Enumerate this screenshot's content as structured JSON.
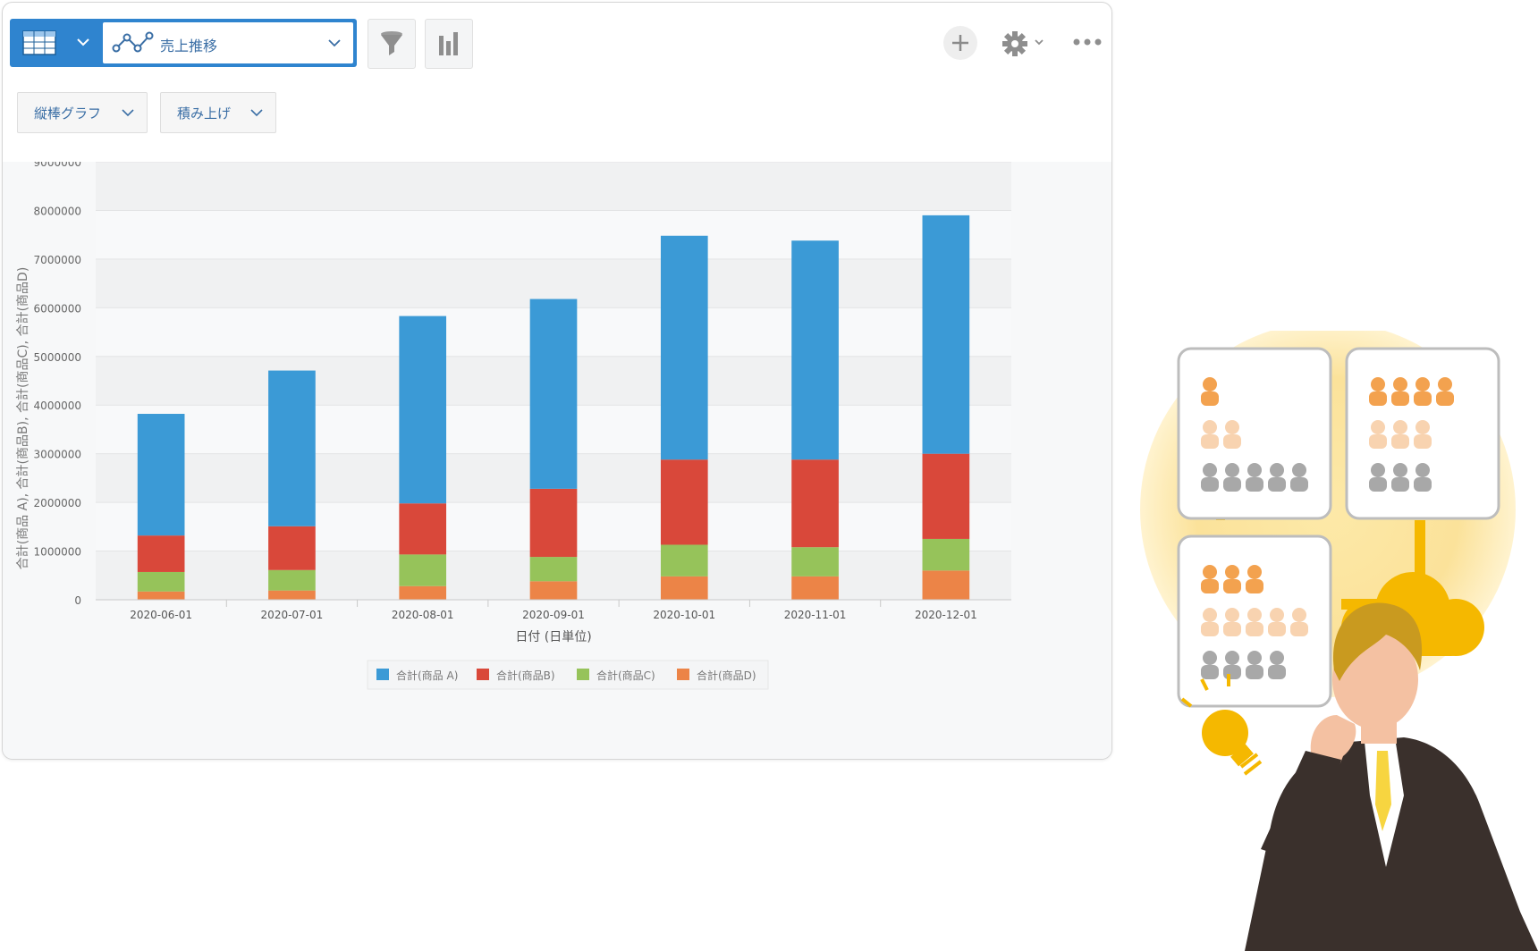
{
  "toolbar": {
    "view_name": "売上推移",
    "chart_type_label": "縦棒グラフ",
    "stack_mode_label": "積み上げ"
  },
  "icons": {
    "view": "table-icon",
    "view_select": "line-chart-icon",
    "filter": "filter-icon",
    "graph": "bar-chart-icon",
    "add": "plus-icon",
    "settings": "gear-icon",
    "more": "more-icon"
  },
  "colors": {
    "accent": "#2f84cf",
    "series": [
      "#3b9ad6",
      "#d9483a",
      "#96c35a",
      "#ec8447"
    ]
  },
  "chart_data": {
    "type": "bar",
    "stacked": true,
    "categories": [
      "2020-06-01",
      "2020-07-01",
      "2020-08-01",
      "2020-09-01",
      "2020-10-01",
      "2020-11-01",
      "2020-12-01"
    ],
    "series": [
      {
        "name": "合計(商品 A)",
        "values": [
          2500000,
          3200000,
          3850000,
          3900000,
          4600000,
          4500000,
          4900000
        ]
      },
      {
        "name": "合計(商品B)",
        "values": [
          750000,
          900000,
          1050000,
          1400000,
          1750000,
          1800000,
          1750000
        ]
      },
      {
        "name": "合計(商品C)",
        "values": [
          400000,
          420000,
          650000,
          500000,
          650000,
          600000,
          650000
        ]
      },
      {
        "name": "合計(商品D)",
        "values": [
          170000,
          190000,
          280000,
          380000,
          480000,
          480000,
          600000
        ]
      }
    ],
    "xlabel": "日付 (日単位)",
    "ylabel": "合計(商品 A), 合計(商品B), 合計(商品C), 合計(商品D)",
    "ylim": [
      0,
      9000000
    ],
    "yticks": [
      0,
      1000000,
      2000000,
      3000000,
      4000000,
      5000000,
      6000000,
      7000000,
      8000000,
      9000000
    ],
    "grid": true,
    "legend_position": "bottom"
  }
}
